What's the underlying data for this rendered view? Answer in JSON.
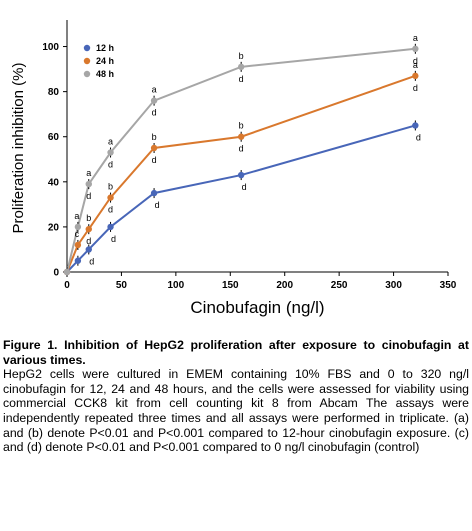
{
  "chart_data": {
    "type": "line",
    "title": "",
    "xlabel": "Cinobufagin (ng/l)",
    "ylabel": "Proliferation inhibition (%)",
    "xlim": [
      0,
      350
    ],
    "ylim": [
      0,
      110
    ],
    "xticks": [
      "0",
      "50",
      "100",
      "150",
      "200",
      "250",
      "300",
      "350"
    ],
    "yticks": [
      "0",
      "20",
      "40",
      "60",
      "80",
      "100"
    ],
    "x": [
      0,
      10,
      20,
      40,
      80,
      160,
      320
    ],
    "grid": false,
    "legend_position": "top-left",
    "series": [
      {
        "name": "12 h",
        "color": "#4866b8",
        "values": [
          0,
          5,
          10,
          20,
          35,
          43,
          65
        ],
        "labels": [
          "",
          "",
          "d",
          "d",
          "d",
          "d",
          "d"
        ]
      },
      {
        "name": "24 h",
        "color": "#d9782d",
        "values": [
          0,
          12,
          19,
          33,
          55,
          60,
          87
        ],
        "labels": [
          "",
          "c",
          "b d",
          "b d",
          "b d",
          "b d",
          "a d"
        ]
      },
      {
        "name": "48 h",
        "color": "#a6a6a6",
        "values": [
          0,
          20,
          39,
          53,
          76,
          91,
          99
        ],
        "labels": [
          "",
          "a",
          "a d",
          "a d",
          "a d",
          "b d",
          "a d"
        ]
      }
    ]
  },
  "caption": {
    "title": "Figure 1. Inhibition of HepG2 proliferation after exposure to cinobufagin at various times.",
    "body": "HepG2 cells were cultured in EMEM containing 10% FBS and 0 to 320 ng/l cinobufagin for 12, 24 and 48 hours, and the cells were assessed for viability using commercial CCK8 kit from cell counting kit 8 from Abcam The assays were independently repeated three times and all assays were performed in triplicate. (a) and (b) denote P<0.01 and P<0.001 compared to 12-hour cinobufagin exposure. (c) and (d) denote P<0.01 and P<0.001 compared to 0 ng/l cinobufagin (control)"
  }
}
